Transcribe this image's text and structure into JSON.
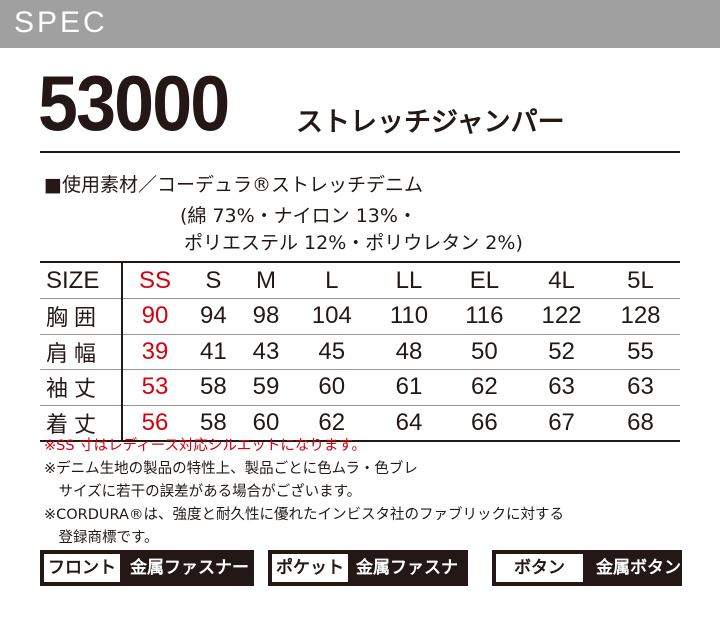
{
  "header": {
    "label": "SPEC"
  },
  "product": {
    "model": "53000",
    "name": "ストレッチジャンパー"
  },
  "material": {
    "line1": "■使用素材／コーデュラ®ストレッチデニム",
    "line2": "(綿 73%・ナイロン 13%・",
    "line3": "ポリエステル 12%・ポリウレタン 2%)"
  },
  "table": {
    "rows": [
      {
        "label": "SIZE",
        "values": [
          "SS",
          "S",
          "M",
          "L",
          "LL",
          "EL",
          "4L",
          "5L"
        ]
      },
      {
        "label": "胸囲",
        "values": [
          "90",
          "94",
          "98",
          "104",
          "110",
          "116",
          "122",
          "128"
        ]
      },
      {
        "label": "肩幅",
        "values": [
          "39",
          "41",
          "43",
          "45",
          "48",
          "50",
          "52",
          "55"
        ]
      },
      {
        "label": "袖丈",
        "values": [
          "53",
          "58",
          "59",
          "60",
          "61",
          "62",
          "63",
          "63"
        ]
      },
      {
        "label": "着丈",
        "values": [
          "56",
          "58",
          "60",
          "62",
          "64",
          "66",
          "67",
          "68"
        ]
      }
    ]
  },
  "notes": [
    "※SS 寸はレディース対応シルエットになります。",
    "※デニム生地の製品の特性上、製品ごとに色ムラ・色ブレ",
    "　サイズに若干の誤差がある場合がございます。",
    "※CORDURA®は、強度と耐久性に優れたインビスタ社のファブリックに対する",
    "　登録商標です。"
  ],
  "badges": [
    {
      "label": "フロント",
      "value": "金属ファスナー"
    },
    {
      "label": "ポケット",
      "value": "金属ファスナー"
    },
    {
      "label": "ボタン",
      "value": "金属ボタン"
    }
  ],
  "colors": {
    "header": "#a0a0a0",
    "accent_red": "#d7000f",
    "text": "#231815"
  }
}
